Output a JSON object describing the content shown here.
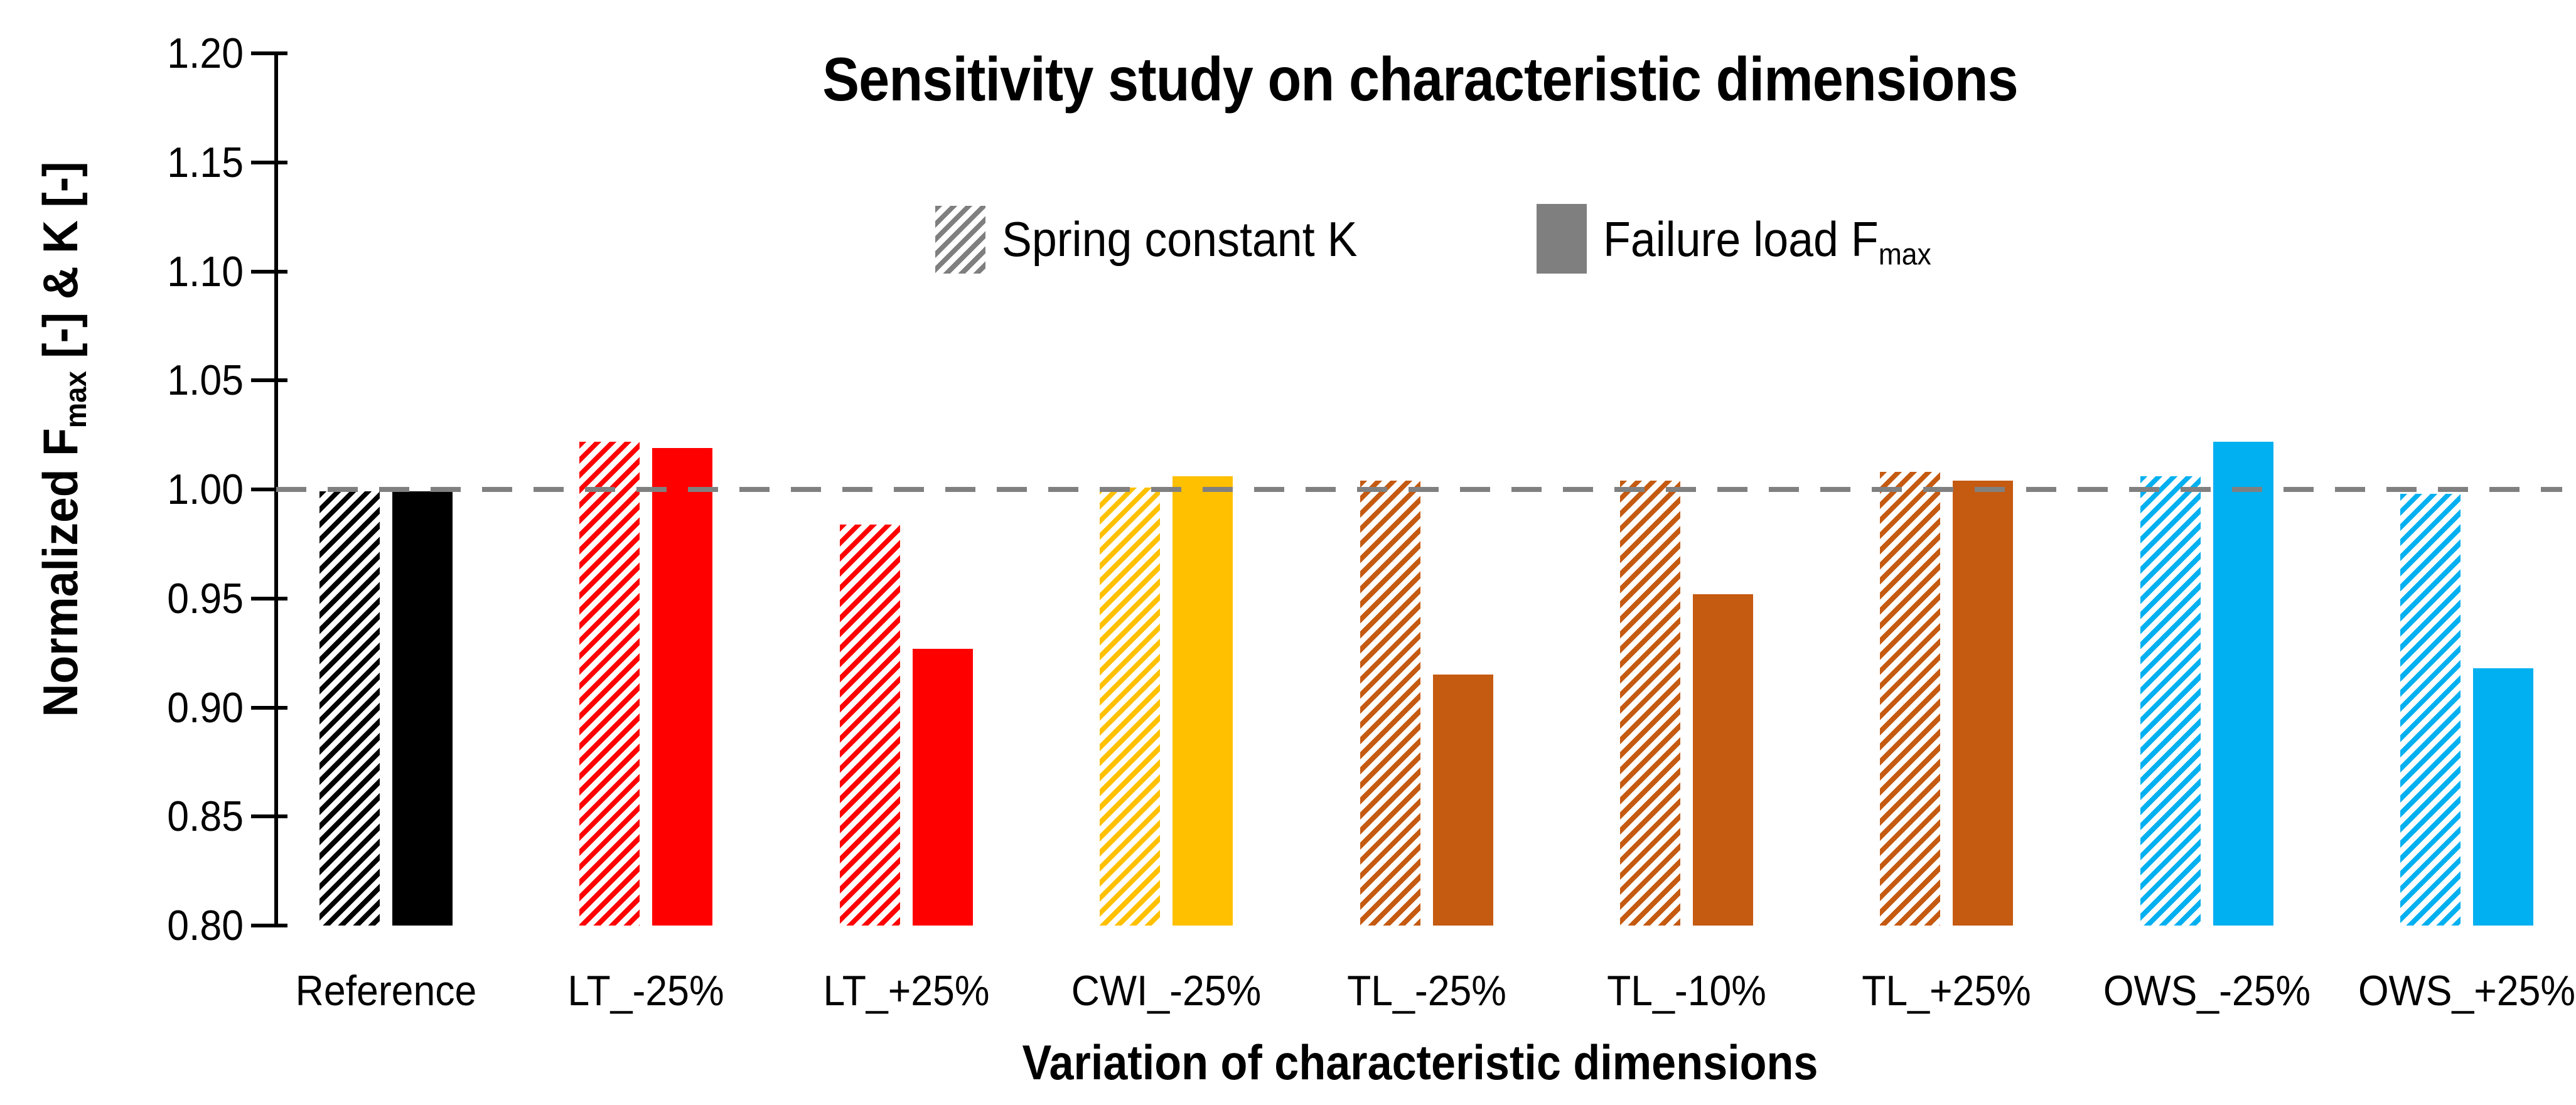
{
  "chart_data": {
    "type": "bar",
    "title": "Sensitivity study on characteristic dimensions",
    "xlabel": "Variation of characteristic dimensions",
    "ylabel_parts": {
      "prefix": "Normalized F",
      "sub": "max",
      "suffix": " [-]  &  K [-]"
    },
    "legend": [
      {
        "label": "Spring constant K",
        "swatch": "hatched"
      },
      {
        "label_prefix": "Failure load F",
        "label_sub": "max",
        "swatch": "solid"
      }
    ],
    "legend_swatch_color": "#7F7F7F",
    "legend_position": "top-center",
    "categories": [
      "Reference",
      "LT_-25%",
      "LT_+25%",
      "CWI_-25%",
      "TL_-25%",
      "TL_-10%",
      "TL_+25%",
      "OWS_-25%",
      "OWS_+25%"
    ],
    "series": [
      {
        "name": "Spring constant K",
        "style": "hatched",
        "values": [
          0.999,
          1.022,
          0.984,
          1.001,
          1.004,
          1.004,
          1.008,
          1.006,
          0.998
        ]
      },
      {
        "name": "Failure load Fmax",
        "style": "solid",
        "values": [
          0.999,
          1.019,
          0.927,
          1.006,
          0.915,
          0.952,
          1.004,
          1.022,
          0.918
        ]
      }
    ],
    "group_colors": [
      "#000000",
      "#FF0000",
      "#FF0000",
      "#FFC000",
      "#C55A11",
      "#C55A11",
      "#C55A11",
      "#00B0F0",
      "#00B0F0"
    ],
    "ylim": [
      0.8,
      1.2
    ],
    "ytick_step": 0.05,
    "ytick_decimals": 2,
    "reference_line": 1.0,
    "reference_line_color": "#808080",
    "grid": false
  }
}
